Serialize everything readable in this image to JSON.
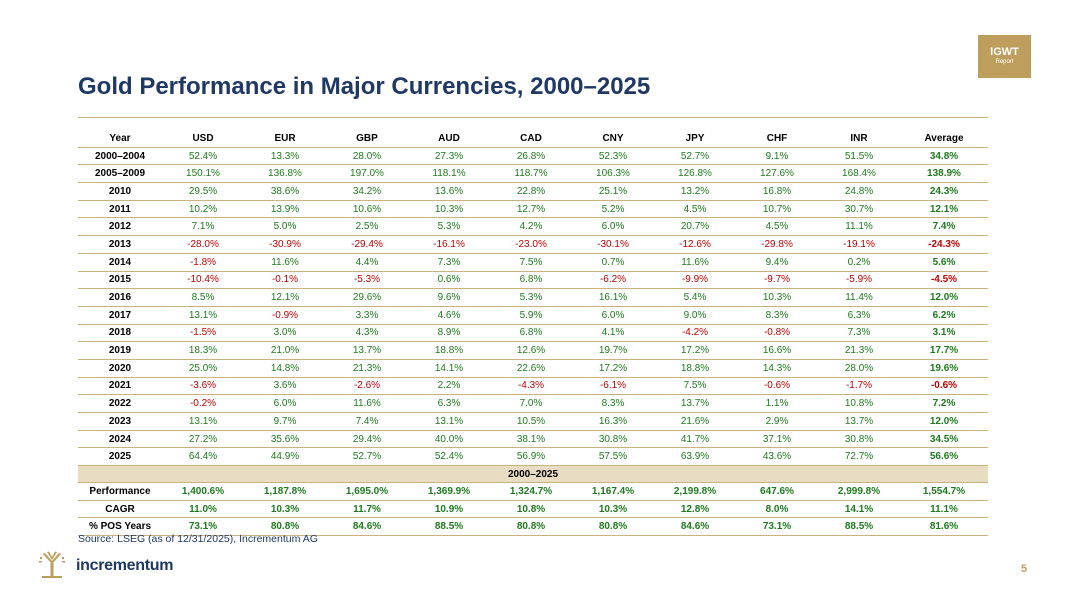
{
  "badge": {
    "line1": "IGWT",
    "line2": "Report"
  },
  "title": "Gold Performance in Major Currencies, 2000–2025",
  "table": {
    "headers": [
      "Year",
      "USD",
      "EUR",
      "GBP",
      "AUD",
      "CAD",
      "CNY",
      "JPY",
      "CHF",
      "INR",
      "Average"
    ],
    "rows": [
      [
        "2000–2004",
        "52.4%",
        "13.3%",
        "28.0%",
        "27.3%",
        "26.8%",
        "52.3%",
        "52.7%",
        "9.1%",
        "51.5%",
        "34.8%"
      ],
      [
        "2005–2009",
        "150.1%",
        "136.8%",
        "197.0%",
        "118.1%",
        "118.7%",
        "106.3%",
        "126.8%",
        "127.6%",
        "168.4%",
        "138.9%"
      ],
      [
        "2010",
        "29.5%",
        "38.6%",
        "34.2%",
        "13.6%",
        "22.8%",
        "25.1%",
        "13.2%",
        "16.8%",
        "24.8%",
        "24.3%"
      ],
      [
        "2011",
        "10.2%",
        "13.9%",
        "10.6%",
        "10.3%",
        "12.7%",
        "5.2%",
        "4.5%",
        "10.7%",
        "30.7%",
        "12.1%"
      ],
      [
        "2012",
        "7.1%",
        "5.0%",
        "2.5%",
        "5.3%",
        "4.2%",
        "6.0%",
        "20.7%",
        "4.5%",
        "11.1%",
        "7.4%"
      ],
      [
        "2013",
        "-28.0%",
        "-30.9%",
        "-29.4%",
        "-16.1%",
        "-23.0%",
        "-30.1%",
        "-12.6%",
        "-29.8%",
        "-19.1%",
        "-24.3%"
      ],
      [
        "2014",
        "-1.8%",
        "11.6%",
        "4.4%",
        "7.3%",
        "7.5%",
        "0.7%",
        "11.6%",
        "9.4%",
        "0.2%",
        "5.6%"
      ],
      [
        "2015",
        "-10.4%",
        "-0.1%",
        "-5.3%",
        "0.6%",
        "6.8%",
        "-6.2%",
        "-9.9%",
        "-9.7%",
        "-5.9%",
        "-4.5%"
      ],
      [
        "2016",
        "8.5%",
        "12.1%",
        "29.6%",
        "9.6%",
        "5.3%",
        "16.1%",
        "5.4%",
        "10.3%",
        "11.4%",
        "12.0%"
      ],
      [
        "2017",
        "13.1%",
        "-0.9%",
        "3.3%",
        "4.6%",
        "5.9%",
        "6.0%",
        "9.0%",
        "8.3%",
        "6.3%",
        "6.2%"
      ],
      [
        "2018",
        "-1.5%",
        "3.0%",
        "4.3%",
        "8.9%",
        "6.8%",
        "4.1%",
        "-4.2%",
        "-0.8%",
        "7.3%",
        "3.1%"
      ],
      [
        "2019",
        "18.3%",
        "21.0%",
        "13.7%",
        "18.8%",
        "12.6%",
        "19.7%",
        "17.2%",
        "16.6%",
        "21.3%",
        "17.7%"
      ],
      [
        "2020",
        "25.0%",
        "14.8%",
        "21.3%",
        "14.1%",
        "22.6%",
        "17.2%",
        "18.8%",
        "14.3%",
        "28.0%",
        "19.6%"
      ],
      [
        "2021",
        "-3.6%",
        "3.6%",
        "-2.6%",
        "2.2%",
        "-4.3%",
        "-6.1%",
        "7.5%",
        "-0.6%",
        "-1.7%",
        "-0.6%"
      ],
      [
        "2022",
        "-0.2%",
        "6.0%",
        "11.6%",
        "6.3%",
        "7.0%",
        "8.3%",
        "13.7%",
        "1.1%",
        "10.8%",
        "7.2%"
      ],
      [
        "2023",
        "13.1%",
        "9.7%",
        "7.4%",
        "13.1%",
        "10.5%",
        "16.3%",
        "21.6%",
        "2.9%",
        "13.7%",
        "12.0%"
      ],
      [
        "2024",
        "27.2%",
        "35.6%",
        "29.4%",
        "40.0%",
        "38.1%",
        "30.8%",
        "41.7%",
        "37.1%",
        "30.8%",
        "34.5%"
      ],
      [
        "2025",
        "64.4%",
        "44.9%",
        "52.7%",
        "52.4%",
        "56.9%",
        "57.5%",
        "63.9%",
        "43.6%",
        "72.7%",
        "56.6%"
      ]
    ],
    "section_label": "2000–2025",
    "summary_rows": [
      [
        "Performance",
        "1,400.6%",
        "1,187.8%",
        "1,695.0%",
        "1,369.9%",
        "1,324.7%",
        "1,167.4%",
        "2,199.8%",
        "647.6%",
        "2,999.8%",
        "1,554.7%"
      ],
      [
        "CAGR",
        "11.0%",
        "10.3%",
        "11.7%",
        "10.9%",
        "10.8%",
        "10.3%",
        "12.8%",
        "8.0%",
        "14.1%",
        "11.1%"
      ],
      [
        "% POS Years",
        "73.1%",
        "80.8%",
        "84.6%",
        "88.5%",
        "80.8%",
        "80.8%",
        "84.6%",
        "73.1%",
        "88.5%",
        "81.6%"
      ]
    ]
  },
  "source": "Source: LSEG (as of 12/31/2025), Incrementum AG",
  "brand": "incrementum",
  "page_number": "5",
  "colors": {
    "positive": "#1e7a1e",
    "negative": "#c00000",
    "title": "#1f3864",
    "gold": "#bd9e5c"
  }
}
